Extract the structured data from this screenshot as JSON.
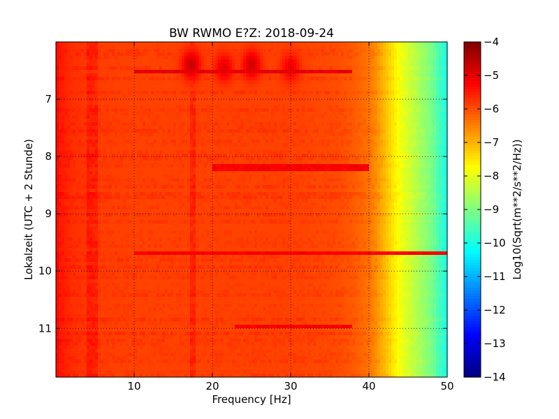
{
  "chart_data": {
    "type": "heatmap",
    "title": "BW RWMO E?Z: 2018-09-24",
    "xlabel": "Frequency [Hz]",
    "ylabel": "Lokalzeit (UTC + 2 Stunde)",
    "xlim": [
      0,
      50
    ],
    "ylim": [
      6,
      11.85
    ],
    "y_inverted": true,
    "x_ticks": [
      10,
      20,
      30,
      40,
      50
    ],
    "x_tick_labels": [
      "10",
      "20",
      "30",
      "40",
      "50"
    ],
    "y_ticks": [
      7,
      8,
      9,
      10,
      11
    ],
    "y_tick_labels": [
      "7",
      "8",
      "9",
      "10",
      "11"
    ],
    "grid": true,
    "colorbar": {
      "label": "Log10(Sqrt(m**2/s**2/Hz))",
      "colormap": "jet",
      "range": [
        -14,
        -4
      ],
      "ticks": [
        -4,
        -5,
        -6,
        -7,
        -8,
        -9,
        -10,
        -11,
        -12,
        -13,
        -14
      ],
      "tick_labels": [
        "−4",
        "−5",
        "−6",
        "−7",
        "−8",
        "−9",
        "−10",
        "−11",
        "−12",
        "−13",
        "−14"
      ]
    },
    "spectrum_profile": {
      "frequency_hz": [
        0,
        0.5,
        2,
        5,
        10,
        20,
        30,
        36,
        38,
        40,
        41,
        42,
        43,
        44,
        45,
        46,
        47,
        48,
        49,
        50
      ],
      "log10_amplitude": [
        -5.3,
        -5.5,
        -5.7,
        -5.85,
        -5.9,
        -5.9,
        -5.9,
        -6.0,
        -6.15,
        -6.4,
        -6.7,
        -7.1,
        -7.5,
        -7.9,
        -8.2,
        -8.5,
        -8.8,
        -9.1,
        -9.6,
        -10.1
      ]
    },
    "features": {
      "lines_hz": [
        4.3,
        5.0,
        17.5
      ],
      "early_bursts": [
        {
          "f_hz": 17.3,
          "t": 6.4,
          "value": -4.7
        },
        {
          "f_hz": 21.5,
          "t": 6.45,
          "value": -5.0
        },
        {
          "f_hz": 25.0,
          "t": 6.4,
          "value": -4.8
        },
        {
          "f_hz": 30.0,
          "t": 6.45,
          "value": -5.1
        }
      ],
      "bright_rows": [
        {
          "t": 6.5,
          "f_range_hz": [
            10,
            38
          ],
          "value": -5.0
        },
        {
          "t": 8.2,
          "f_range_hz": [
            20,
            40
          ],
          "value": -5.2
        },
        {
          "t": 9.68,
          "f_range_hz": [
            10,
            50
          ],
          "value": -5.2
        },
        {
          "t": 10.98,
          "f_range_hz": [
            23,
            38
          ],
          "value": -5.2
        }
      ]
    }
  }
}
